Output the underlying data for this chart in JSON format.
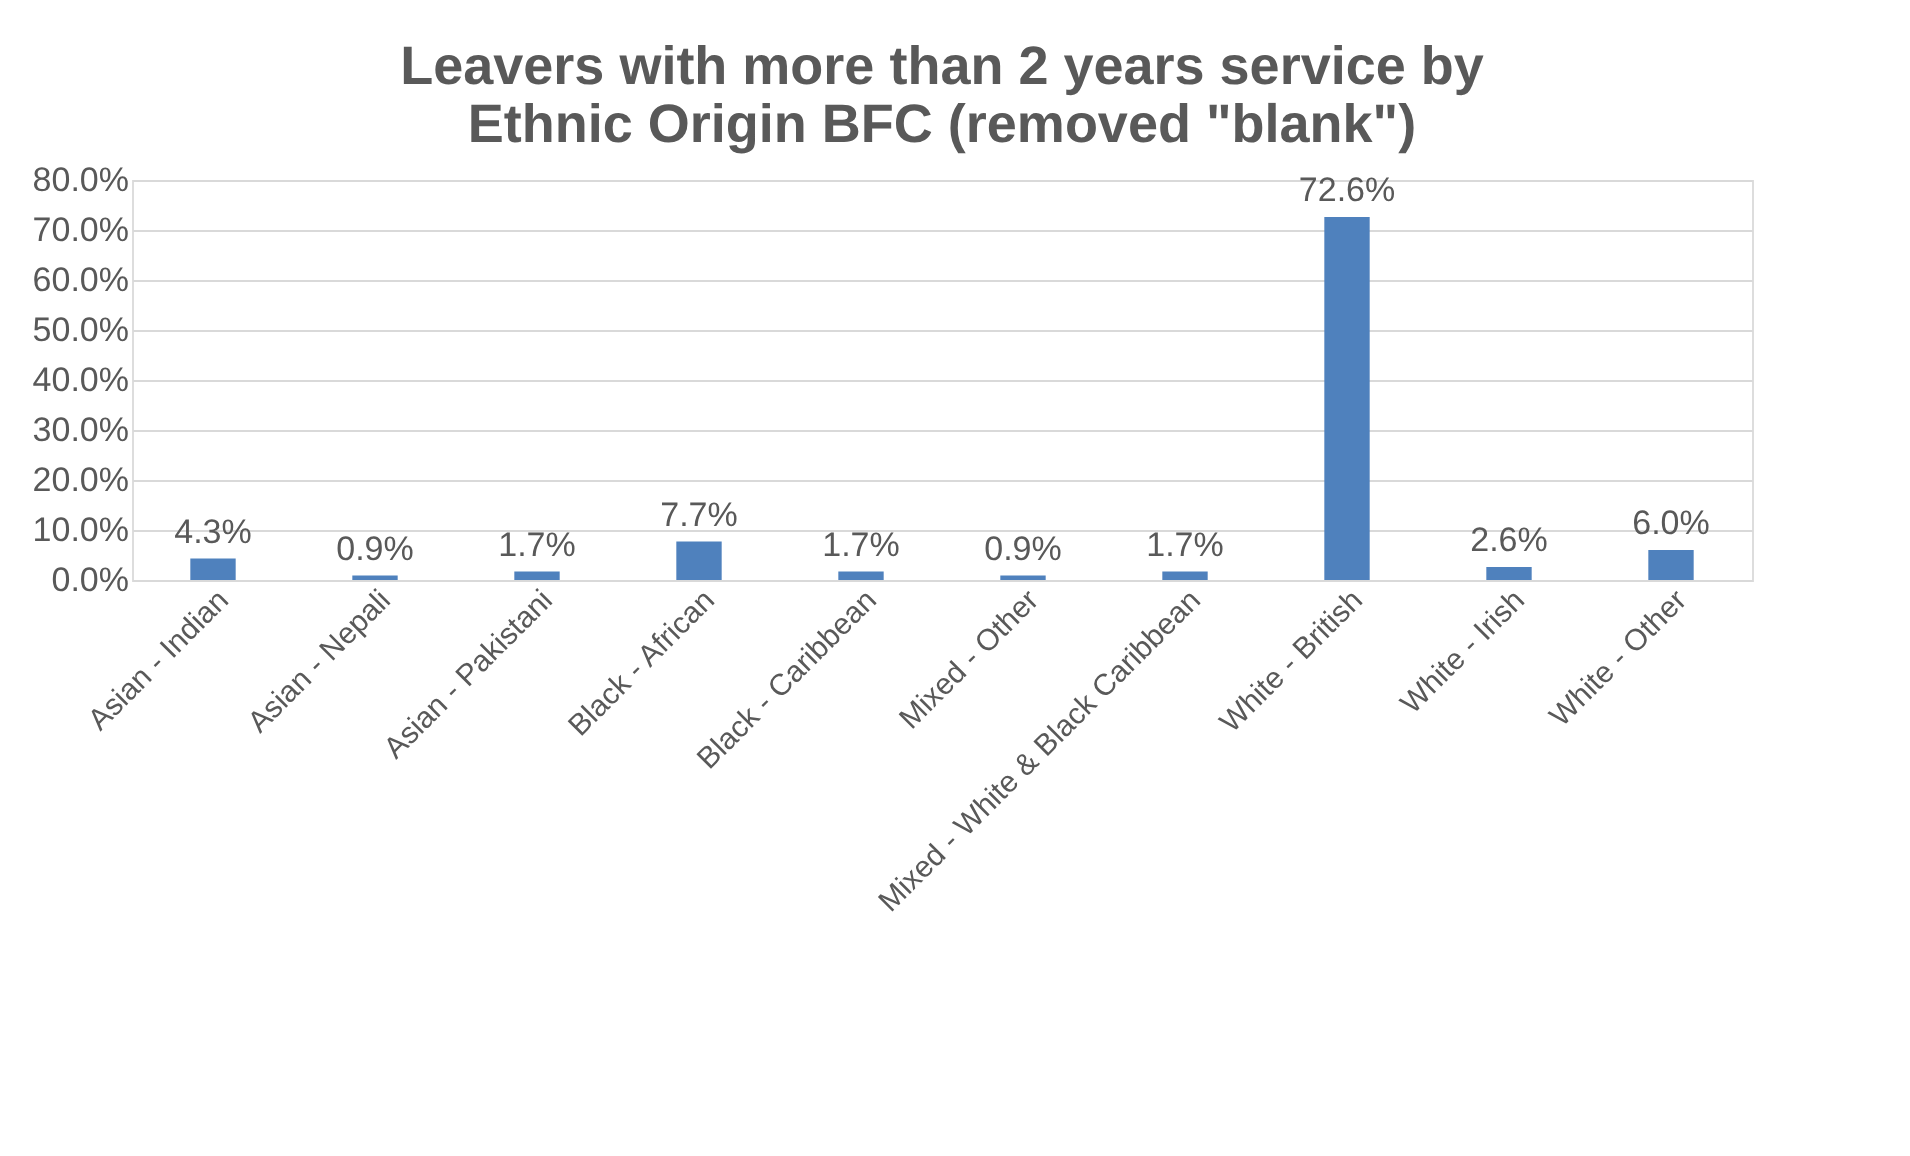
{
  "chart_data": {
    "type": "bar",
    "title": "Leavers with more than 2 years service by Ethnic Origin BFC (removed \"blank\")",
    "categories": [
      "Asian - Indian",
      "Asian - Nepali",
      "Asian - Pakistani",
      "Black - African",
      "Black - Caribbean",
      "Mixed - Other",
      "Mixed - White & Black Caribbean",
      "White - British",
      "White - Irish",
      "White - Other"
    ],
    "values": [
      4.3,
      0.9,
      1.7,
      7.7,
      1.7,
      0.9,
      1.7,
      72.6,
      2.6,
      6.0
    ],
    "value_labels": [
      "4.3%",
      "0.9%",
      "1.7%",
      "7.7%",
      "1.7%",
      "0.9%",
      "1.7%",
      "72.6%",
      "2.6%",
      "6.0%"
    ],
    "color": "#4f81bd",
    "ylim": [
      0,
      80
    ],
    "yticks": [
      {
        "value": 0,
        "label": "0.0%"
      },
      {
        "value": 10,
        "label": "10.0%"
      },
      {
        "value": 20,
        "label": "20.0%"
      },
      {
        "value": 30,
        "label": "30.0%"
      },
      {
        "value": 40,
        "label": "40.0%"
      },
      {
        "value": 50,
        "label": "50.0%"
      },
      {
        "value": 60,
        "label": "60.0%"
      },
      {
        "value": 70,
        "label": "70.0%"
      },
      {
        "value": 80,
        "label": "80.0%"
      }
    ],
    "grid": "y"
  }
}
